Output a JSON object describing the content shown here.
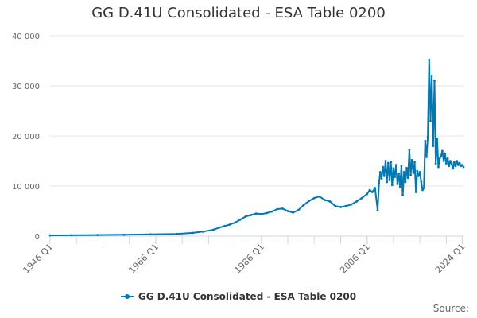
{
  "chart_data": {
    "type": "line",
    "title": "GG D.41U Consolidated - ESA Table 0200",
    "xlabel": "",
    "ylabel": "",
    "ylim": [
      0,
      40000
    ],
    "y_ticks": [
      0,
      10000,
      20000,
      30000,
      40000
    ],
    "y_tick_labels": [
      "0",
      "10 000",
      "20 000",
      "30 000",
      "40 000"
    ],
    "x_ticks": [
      1946.0,
      1966.0,
      1986.0,
      2006.0,
      2024.0
    ],
    "x_tick_labels": [
      "1946 Q1",
      "1966 Q1",
      "1986 Q1",
      "2006 Q1",
      "2024 Q1"
    ],
    "xlim": [
      1946.0,
      2024.25
    ],
    "grid": true,
    "legend_position": "bottom",
    "series": [
      {
        "name": "GG D.41U Consolidated - ESA Table 0200",
        "color": "#0078b4",
        "x": [
          1946.0,
          1950.0,
          1955.0,
          1960.0,
          1965.0,
          1970.0,
          1973.0,
          1975.0,
          1977.0,
          1978.0,
          1979.0,
          1980.0,
          1981.0,
          1982.0,
          1983.0,
          1984.0,
          1985.0,
          1986.0,
          1987.0,
          1988.0,
          1989.0,
          1990.0,
          1991.0,
          1992.0,
          1993.0,
          1994.0,
          1995.0,
          1996.0,
          1997.0,
          1998.0,
          1999.0,
          2000.0,
          2001.0,
          2002.0,
          2003.0,
          2004.0,
          2005.0,
          2006.0,
          2006.5,
          2007.0,
          2007.5,
          2008.0,
          2008.25,
          2008.5,
          2008.75,
          2009.0,
          2009.25,
          2009.5,
          2009.75,
          2010.0,
          2010.25,
          2010.5,
          2010.75,
          2011.0,
          2011.25,
          2011.5,
          2011.75,
          2012.0,
          2012.25,
          2012.5,
          2012.75,
          2013.0,
          2013.25,
          2013.5,
          2013.75,
          2014.0,
          2014.25,
          2014.5,
          2014.75,
          2015.0,
          2015.25,
          2015.5,
          2015.75,
          2016.0,
          2016.25,
          2016.5,
          2016.75,
          2017.0,
          2017.25,
          2017.5,
          2017.75,
          2018.0,
          2018.25,
          2018.5,
          2018.75,
          2019.0,
          2019.25,
          2019.5,
          2019.75,
          2020.0,
          2020.25,
          2020.5,
          2020.75,
          2021.0,
          2021.25,
          2021.5,
          2021.75,
          2022.0,
          2022.25,
          2022.5,
          2022.75,
          2023.0,
          2023.25,
          2023.5,
          2023.75,
          2024.0,
          2024.25
        ],
        "values": [
          150,
          180,
          220,
          280,
          350,
          450,
          650,
          900,
          1300,
          1700,
          2000,
          2300,
          2700,
          3300,
          3900,
          4200,
          4500,
          4400,
          4600,
          4900,
          5400,
          5500,
          5000,
          4700,
          5200,
          6200,
          7000,
          7600,
          7900,
          7200,
          6900,
          6000,
          5800,
          6000,
          6300,
          6900,
          7600,
          8400,
          9200,
          8800,
          9600,
          5200,
          10500,
          12800,
          11500,
          13800,
          12000,
          15000,
          10800,
          14600,
          11200,
          14800,
          10200,
          13500,
          11800,
          14200,
          10400,
          12500,
          9800,
          14000,
          8200,
          12800,
          10800,
          13600,
          11600,
          17200,
          12200,
          15200,
          12600,
          14800,
          8800,
          13000,
          12000,
          12800,
          10800,
          9200,
          9600,
          19000,
          15800,
          19800,
          35200,
          23000,
          32000,
          18000,
          31000,
          14500,
          19500,
          13800,
          15500,
          16000,
          17000,
          15000,
          16500,
          14500,
          15500,
          14000,
          15000,
          14500,
          13500,
          14800,
          14000,
          15000,
          14200,
          14600,
          14000,
          14200,
          13800
        ]
      }
    ]
  },
  "source_label": "Source:"
}
